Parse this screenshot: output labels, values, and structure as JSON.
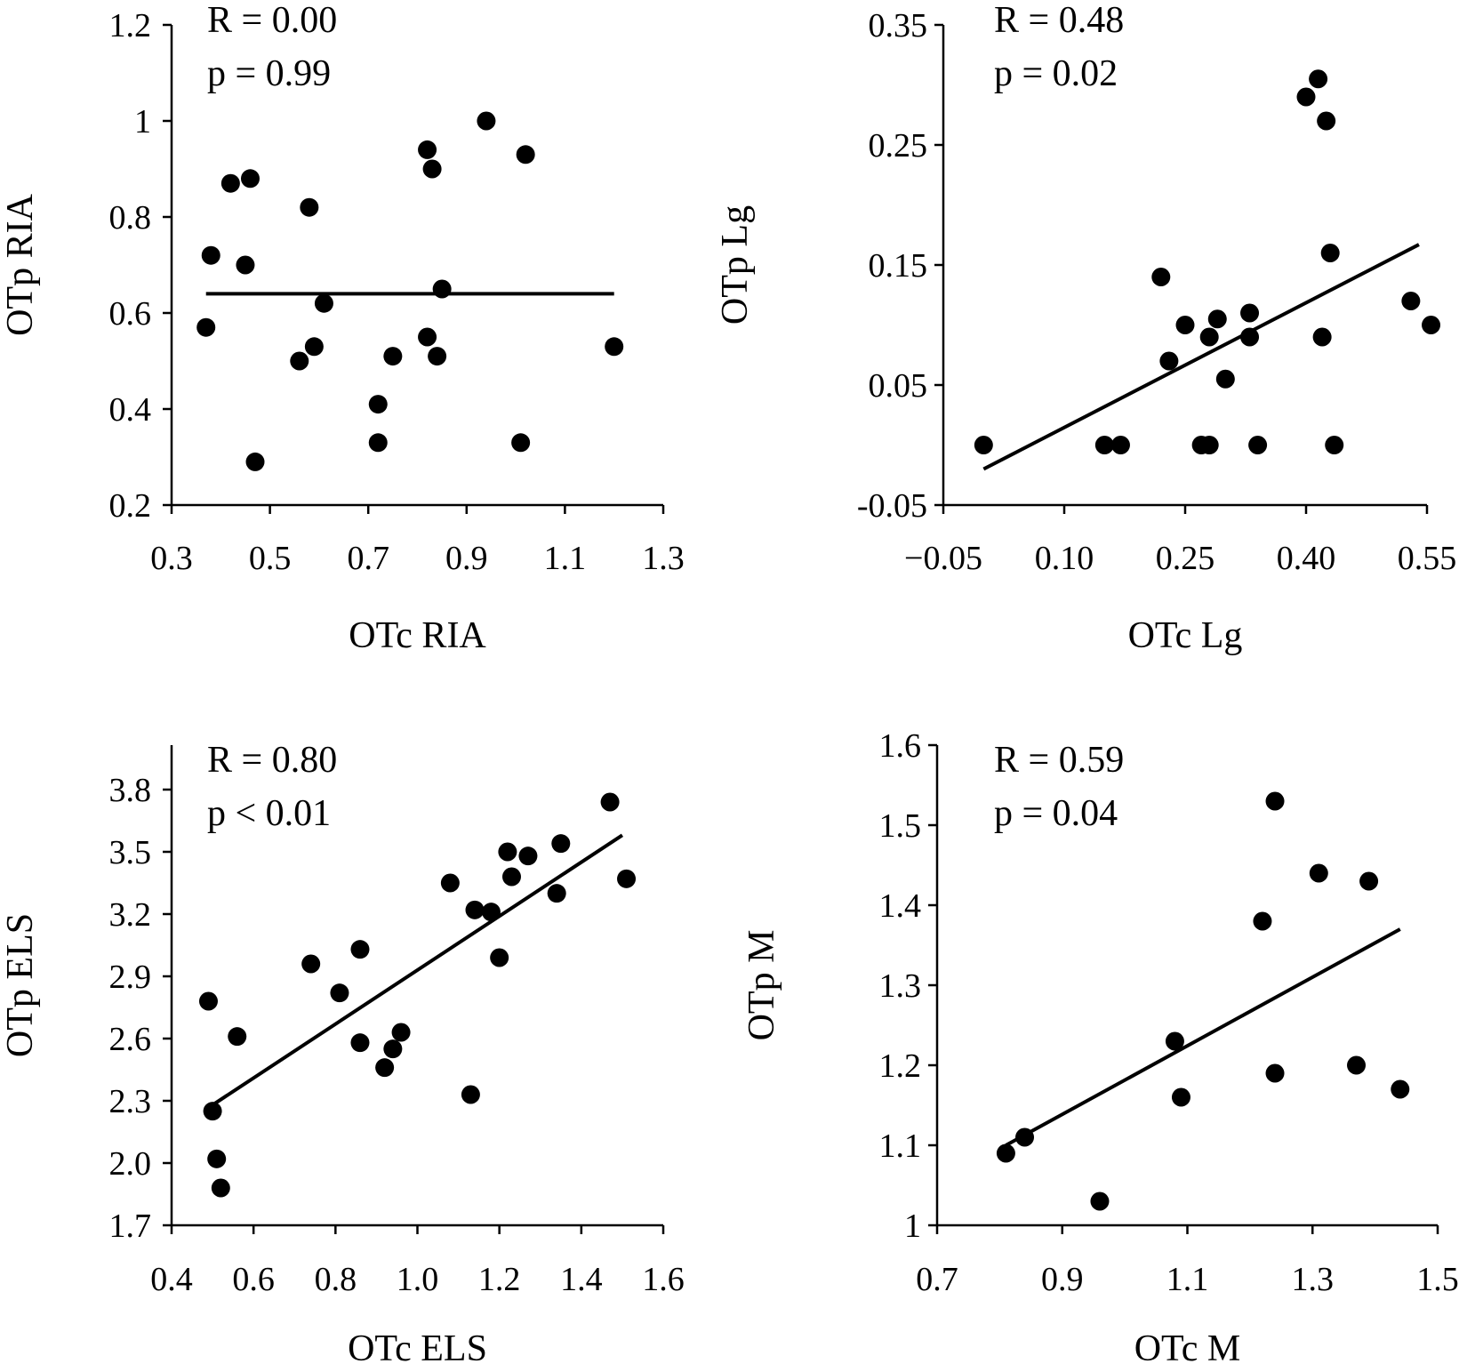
{
  "chart_data": [
    {
      "type": "scatter",
      "title": "",
      "xlabel": "OTc RIA",
      "ylabel": "OTp RIA",
      "stats": {
        "r": "R = 0.00",
        "p": "p = 0.99"
      },
      "xlim": [
        0.3,
        1.3
      ],
      "ylim": [
        0.2,
        1.2
      ],
      "xticks": [
        "0.3",
        "0.5",
        "0.7",
        "0.9",
        "1.1",
        "1.3"
      ],
      "yticks": [
        "0.2",
        "0.4",
        "0.6",
        "0.8",
        "1",
        "1.2"
      ],
      "points": [
        [
          0.37,
          0.57
        ],
        [
          0.38,
          0.72
        ],
        [
          0.42,
          0.87
        ],
        [
          0.45,
          0.7
        ],
        [
          0.46,
          0.88
        ],
        [
          0.47,
          0.29
        ],
        [
          0.56,
          0.5
        ],
        [
          0.58,
          0.82
        ],
        [
          0.59,
          0.53
        ],
        [
          0.61,
          0.62
        ],
        [
          0.72,
          0.41
        ],
        [
          0.72,
          0.33
        ],
        [
          0.75,
          0.51
        ],
        [
          0.82,
          0.94
        ],
        [
          0.82,
          0.55
        ],
        [
          0.83,
          0.9
        ],
        [
          0.84,
          0.51
        ],
        [
          0.85,
          0.65
        ],
        [
          0.94,
          1.0
        ],
        [
          1.01,
          0.33
        ],
        [
          1.02,
          0.93
        ],
        [
          1.2,
          0.53
        ]
      ],
      "trend": {
        "x1": 0.37,
        "y1": 0.64,
        "x2": 1.2,
        "y2": 0.64
      }
    },
    {
      "type": "scatter",
      "title": "",
      "xlabel": "OTc Lg",
      "ylabel": "OTp Lg",
      "stats": {
        "r": "R = 0.48",
        "p": "p = 0.02"
      },
      "xlim": [
        -0.05,
        0.6
      ],
      "ylim": [
        -0.05,
        0.35
      ],
      "xticks": [
        "-0.05",
        "0.10",
        "0.25",
        "0.40",
        "0.55"
      ],
      "xtick_values": [
        -0.05,
        0.1,
        0.25,
        0.4,
        0.55
      ],
      "yticks": [
        "-0.05",
        "0.05",
        "0.15",
        "0.25",
        "0.35"
      ],
      "ytick_values": [
        -0.05,
        0.05,
        0.15,
        0.25,
        0.35
      ],
      "points": [
        [
          0.0,
          0.0
        ],
        [
          0.15,
          0.0
        ],
        [
          0.17,
          0.0
        ],
        [
          0.22,
          0.14
        ],
        [
          0.23,
          0.07
        ],
        [
          0.25,
          0.1
        ],
        [
          0.27,
          0.0
        ],
        [
          0.28,
          0.0
        ],
        [
          0.28,
          0.09
        ],
        [
          0.29,
          0.105
        ],
        [
          0.3,
          0.055
        ],
        [
          0.33,
          0.11
        ],
        [
          0.33,
          0.09
        ],
        [
          0.34,
          0.0
        ],
        [
          0.4,
          0.29
        ],
        [
          0.415,
          0.305
        ],
        [
          0.42,
          0.09
        ],
        [
          0.425,
          0.27
        ],
        [
          0.43,
          0.16
        ],
        [
          0.435,
          0.0
        ],
        [
          0.53,
          0.12
        ],
        [
          0.555,
          0.1
        ]
      ],
      "trend": {
        "x1": 0.0,
        "y1": -0.02,
        "x2": 0.54,
        "y2": 0.167
      }
    },
    {
      "type": "scatter",
      "title": "",
      "xlabel": "OTc ELS",
      "ylabel": "OTp ELS",
      "stats": {
        "r": "R = 0.80",
        "p": "p < 0.01"
      },
      "xlim": [
        0.4,
        1.6
      ],
      "ylim": [
        1.7,
        4.0
      ],
      "xticks": [
        "0.4",
        "0.6",
        "0.8",
        "1.0",
        "1.2",
        "1.4",
        "1.6"
      ],
      "xtick_values": [
        0.4,
        0.6,
        0.8,
        1.0,
        1.2,
        1.4,
        1.6
      ],
      "yticks": [
        "1.7",
        "2.0",
        "2.3",
        "2.6",
        "2.9",
        "3.2",
        "3.5",
        "3.8"
      ],
      "ytick_values": [
        1.7,
        2.0,
        2.3,
        2.6,
        2.9,
        3.2,
        3.5,
        3.8
      ],
      "points": [
        [
          0.49,
          2.78
        ],
        [
          0.5,
          2.25
        ],
        [
          0.51,
          2.02
        ],
        [
          0.52,
          1.88
        ],
        [
          0.56,
          2.61
        ],
        [
          0.74,
          2.96
        ],
        [
          0.81,
          2.82
        ],
        [
          0.86,
          3.03
        ],
        [
          0.86,
          2.58
        ],
        [
          0.92,
          2.46
        ],
        [
          0.94,
          2.55
        ],
        [
          0.96,
          2.63
        ],
        [
          1.08,
          3.35
        ],
        [
          1.13,
          2.33
        ],
        [
          1.14,
          3.22
        ],
        [
          1.18,
          3.21
        ],
        [
          1.2,
          2.99
        ],
        [
          1.22,
          3.5
        ],
        [
          1.23,
          3.38
        ],
        [
          1.27,
          3.48
        ],
        [
          1.34,
          3.3
        ],
        [
          1.35,
          3.54
        ],
        [
          1.47,
          3.74
        ],
        [
          1.51,
          3.37
        ]
      ],
      "trend": {
        "x1": 0.5,
        "y1": 2.28,
        "x2": 1.5,
        "y2": 3.58
      }
    },
    {
      "type": "scatter",
      "title": "",
      "xlabel": "OTc M",
      "ylabel": "OTp M",
      "stats": {
        "r": "R = 0.59",
        "p": "p = 0.04"
      },
      "xlim": [
        0.7,
        1.5
      ],
      "ylim": [
        1.0,
        1.6
      ],
      "xticks": [
        "0.7",
        "0.9",
        "1.1",
        "1.3",
        "1.5"
      ],
      "xtick_values": [
        0.7,
        0.9,
        1.1,
        1.3,
        1.5
      ],
      "yticks": [
        "1",
        "1.1",
        "1.2",
        "1.3",
        "1.4",
        "1.5",
        "1.6"
      ],
      "ytick_values": [
        1.0,
        1.1,
        1.2,
        1.3,
        1.4,
        1.5,
        1.6
      ],
      "points": [
        [
          0.81,
          1.09
        ],
        [
          0.84,
          1.11
        ],
        [
          0.96,
          1.03
        ],
        [
          1.08,
          1.23
        ],
        [
          1.09,
          1.16
        ],
        [
          1.22,
          1.38
        ],
        [
          1.24,
          1.53
        ],
        [
          1.24,
          1.19
        ],
        [
          1.31,
          1.44
        ],
        [
          1.37,
          1.2
        ],
        [
          1.39,
          1.43
        ],
        [
          1.44,
          1.17
        ]
      ],
      "trend": {
        "x1": 0.81,
        "y1": 1.1,
        "x2": 1.44,
        "y2": 1.37
      }
    }
  ]
}
